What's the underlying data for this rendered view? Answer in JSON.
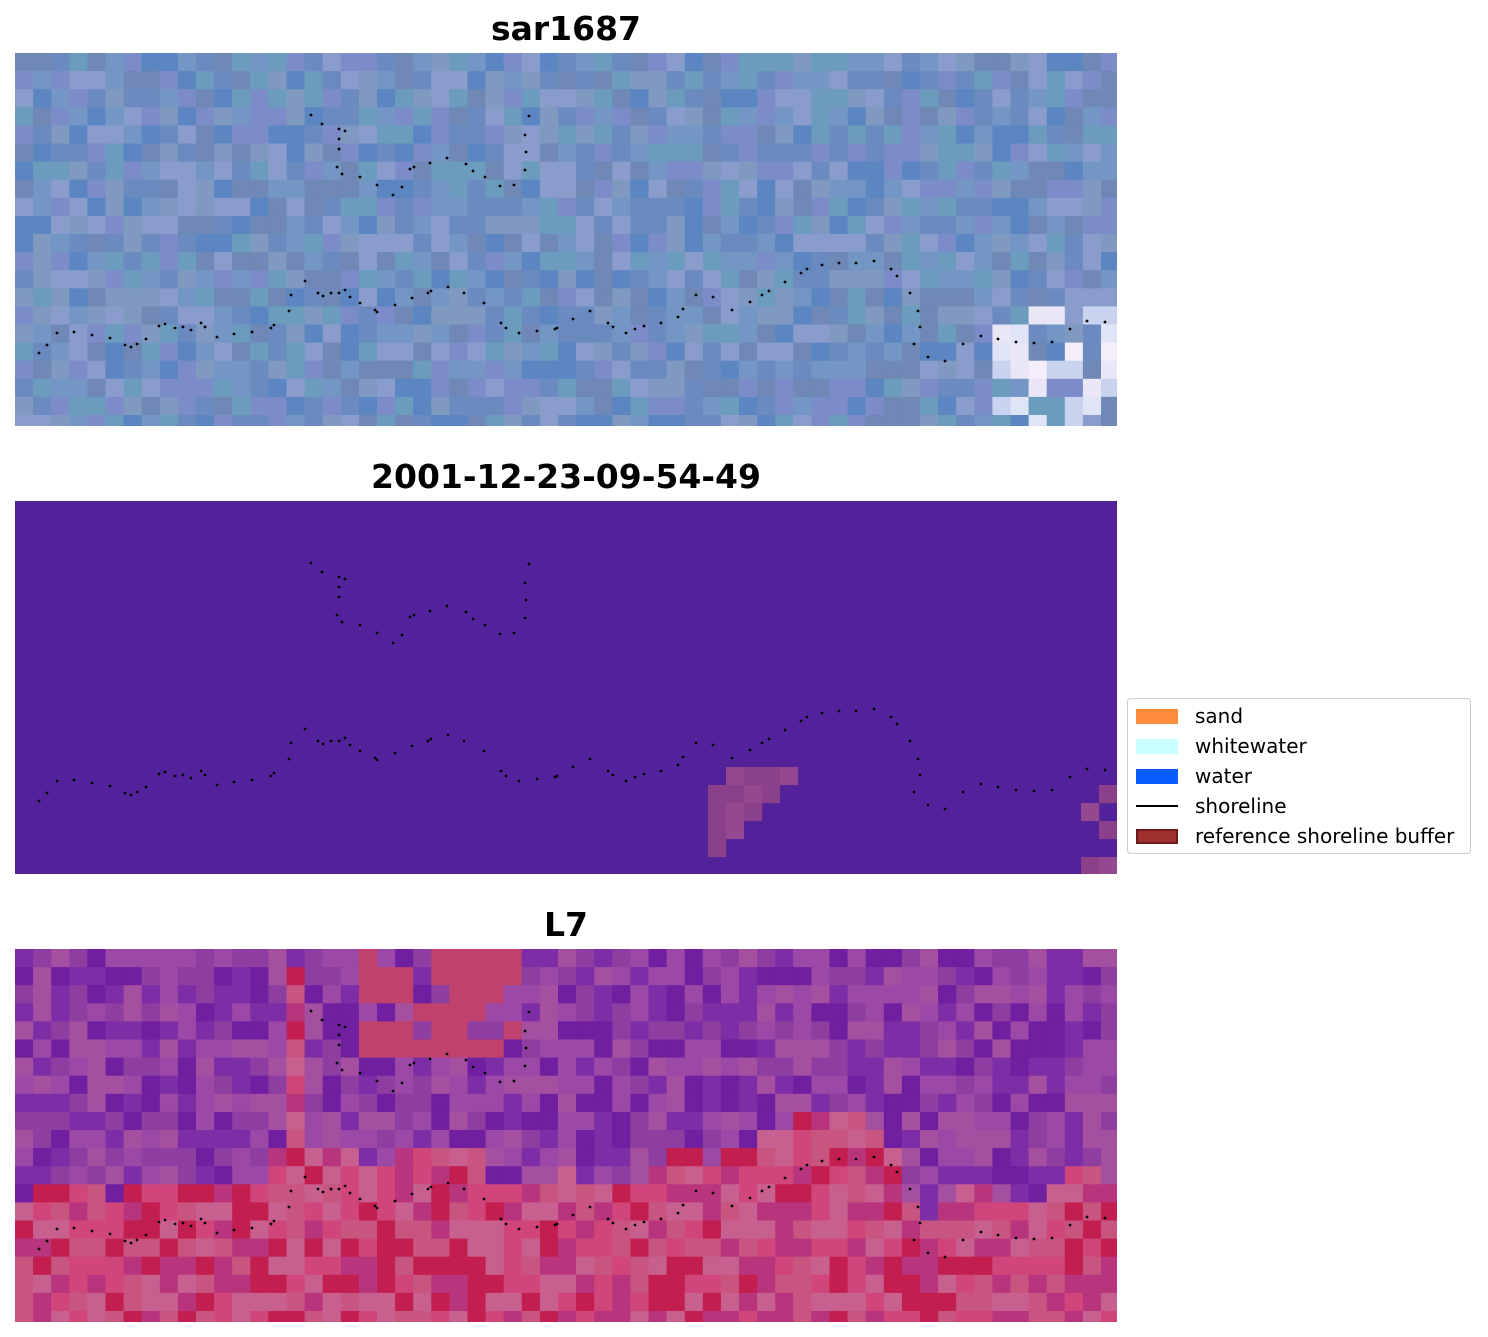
{
  "chart_data": [
    {
      "type": "heatmap",
      "title": "sar1687",
      "grid": false,
      "axes": "off",
      "content": "SAR backscatter image with shoreline points overlay",
      "palette": [
        "#6a8ac0",
        "#7396c4",
        "#7c8cc8",
        "#6b9bbd",
        "#5c86c2",
        "#8a9ccc",
        "#7f99c0",
        "#6f88b6"
      ]
    },
    {
      "type": "heatmap",
      "title": "2001-12-23-09-54-49",
      "grid": false,
      "axes": "off",
      "content": "classified image with shoreline points overlay",
      "background_color": "#53229a",
      "buffer_patch_color": "#8b4189"
    },
    {
      "type": "heatmap",
      "title": "L7",
      "grid": false,
      "axes": "off",
      "content": "Landsat 7 image with shoreline points overlay",
      "palette_top": [
        "#8e3da0",
        "#7d2ea6",
        "#9b48a6",
        "#a44f9f",
        "#6f1fa0"
      ],
      "palette_bottom": [
        "#c7557f",
        "#d1467a",
        "#b8357d",
        "#c8608f",
        "#c21e4f"
      ]
    }
  ],
  "legend": {
    "placement": "center-right",
    "items": [
      {
        "label": "sand",
        "color": "#ff8c3a",
        "kind": "patch"
      },
      {
        "label": "whitewater",
        "color": "#c8ffff",
        "kind": "patch"
      },
      {
        "label": "water",
        "color": "#0a5cff",
        "kind": "patch"
      },
      {
        "label": "shoreline",
        "color": "#000000",
        "kind": "line"
      },
      {
        "label": "reference shoreline buffer",
        "color": "#9e3030",
        "kind": "patch"
      }
    ]
  },
  "shoreline_points": [
    [
      24,
      300
    ],
    [
      32,
      292
    ],
    [
      42,
      280
    ],
    [
      59,
      279
    ],
    [
      77,
      282
    ],
    [
      95,
      285
    ],
    [
      110,
      292
    ],
    [
      116,
      294
    ],
    [
      122,
      291
    ],
    [
      131,
      286
    ],
    [
      144,
      273
    ],
    [
      150,
      271
    ],
    [
      160,
      275
    ],
    [
      168,
      274
    ],
    [
      176,
      277
    ],
    [
      186,
      270
    ],
    [
      190,
      274
    ],
    [
      202,
      284
    ],
    [
      219,
      281
    ],
    [
      237,
      279
    ],
    [
      256,
      275
    ],
    [
      259,
      272
    ],
    [
      274,
      258
    ],
    [
      276,
      242
    ],
    [
      290,
      228
    ],
    [
      303,
      240
    ],
    [
      308,
      243
    ],
    [
      316,
      240
    ],
    [
      324,
      240
    ],
    [
      330,
      237
    ],
    [
      335,
      244
    ],
    [
      345,
      250
    ],
    [
      360,
      257
    ],
    [
      362,
      259
    ],
    [
      380,
      252
    ],
    [
      397,
      245
    ],
    [
      413,
      240
    ],
    [
      416,
      238
    ],
    [
      433,
      234
    ],
    [
      449,
      240
    ],
    [
      469,
      250
    ],
    [
      486,
      270
    ],
    [
      491,
      275
    ],
    [
      504,
      280
    ],
    [
      522,
      278
    ],
    [
      540,
      276
    ],
    [
      542,
      275
    ],
    [
      558,
      266
    ],
    [
      575,
      258
    ],
    [
      593,
      270
    ],
    [
      598,
      274
    ],
    [
      611,
      280
    ],
    [
      620,
      276
    ],
    [
      629,
      273
    ],
    [
      646,
      270
    ],
    [
      663,
      264
    ],
    [
      668,
      256
    ],
    [
      681,
      242
    ],
    [
      698,
      244
    ],
    [
      717,
      257
    ],
    [
      735,
      249
    ],
    [
      747,
      242
    ],
    [
      754,
      238
    ],
    [
      770,
      229
    ],
    [
      786,
      220
    ],
    [
      792,
      216
    ],
    [
      807,
      212
    ],
    [
      824,
      210
    ],
    [
      841,
      210
    ],
    [
      859,
      208
    ],
    [
      876,
      216
    ],
    [
      882,
      223
    ],
    [
      895,
      240
    ],
    [
      903,
      258
    ],
    [
      905,
      274
    ],
    [
      899,
      291
    ],
    [
      913,
      304
    ],
    [
      930,
      308
    ],
    [
      948,
      291
    ],
    [
      966,
      283
    ],
    [
      983,
      286
    ],
    [
      1001,
      289
    ],
    [
      1019,
      290
    ],
    [
      1037,
      289
    ],
    [
      1055,
      276
    ],
    [
      1072,
      268
    ],
    [
      1090,
      269
    ],
    [
      1108,
      270
    ],
    [
      296,
      62
    ],
    [
      307,
      71
    ],
    [
      324,
      76
    ],
    [
      330,
      78
    ],
    [
      324,
      86
    ],
    [
      324,
      96
    ],
    [
      322,
      114
    ],
    [
      327,
      121
    ],
    [
      345,
      124
    ],
    [
      362,
      132
    ],
    [
      378,
      142
    ],
    [
      387,
      134
    ],
    [
      395,
      116
    ],
    [
      399,
      114
    ],
    [
      415,
      110
    ],
    [
      432,
      105
    ],
    [
      451,
      111
    ],
    [
      458,
      118
    ],
    [
      470,
      124
    ],
    [
      485,
      133
    ],
    [
      499,
      132
    ],
    [
      510,
      117
    ],
    [
      511,
      99
    ],
    [
      510,
      82
    ],
    [
      514,
      63
    ]
  ]
}
